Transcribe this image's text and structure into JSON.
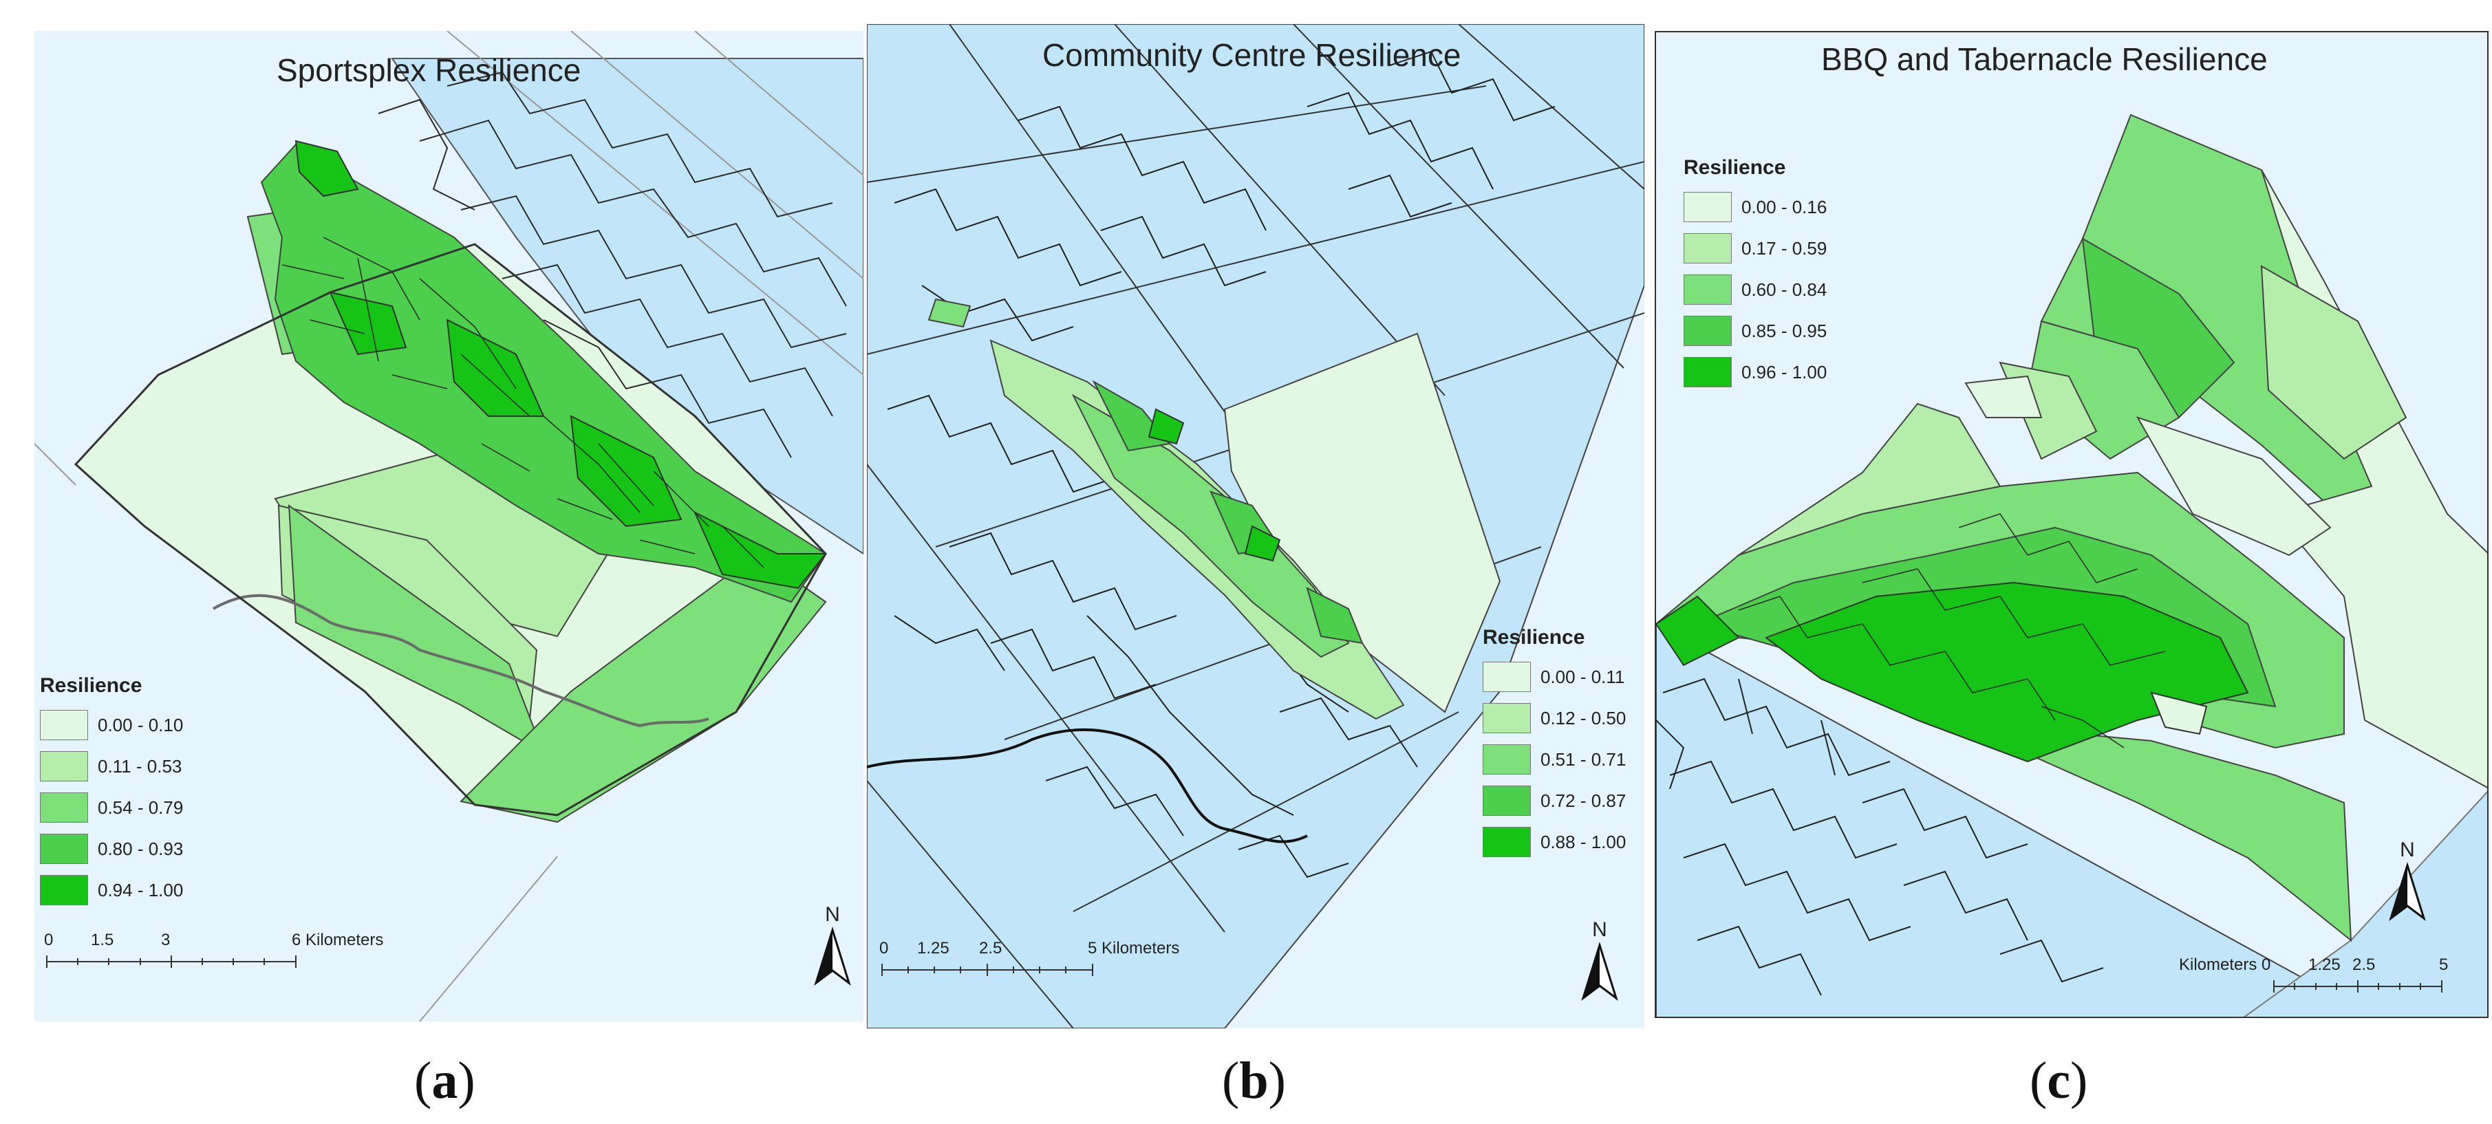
{
  "maps": [
    {
      "title": "Sportsplex Resilience",
      "legend_title": "Resilience",
      "classes": [
        "0.00 - 0.10",
        "0.11 - 0.53",
        "0.54 - 0.79",
        "0.80 - 0.93",
        "0.94 - 1.00"
      ],
      "scale_labels": [
        "0",
        "1.5",
        "3",
        "6 Kilometers"
      ],
      "north": "N",
      "caption_letter": "a"
    },
    {
      "title": "Community Centre Resilience",
      "legend_title": "Resilience",
      "classes": [
        "0.00 - 0.11",
        "0.12 - 0.50",
        "0.51 - 0.71",
        "0.72 - 0.87",
        "0.88 - 1.00"
      ],
      "scale_labels": [
        "0",
        "1.25",
        "2.5",
        "5 Kilometers"
      ],
      "north": "N",
      "caption_letter": "b"
    },
    {
      "title": "BBQ and Tabernacle Resilience",
      "legend_title": "Resilience",
      "classes": [
        "0.00 - 0.16",
        "0.17 - 0.59",
        "0.60 - 0.84",
        "0.85 - 0.95",
        "0.96 - 1.00"
      ],
      "scale_labels": [
        "Kilometers 0",
        "1.25",
        "2.5",
        "5"
      ],
      "north": "N",
      "caption_letter": "c"
    }
  ],
  "colors": {
    "class_ramp": [
      "#e2f8e2",
      "#b4eeaa",
      "#7ee07a",
      "#4ccf4c",
      "#16c416"
    ],
    "water_background": "#e6f4fd",
    "municipality_fill": "#c3e5fa",
    "boundary_line": "#1f1f1f",
    "river_line": "#6b6b6b"
  }
}
